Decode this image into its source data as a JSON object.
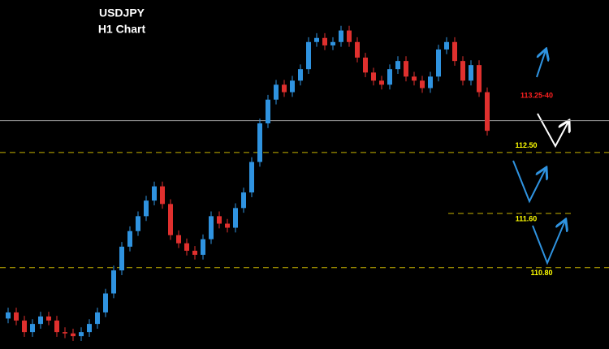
{
  "chart_data": {
    "type": "candlestick",
    "title": "USDJPY",
    "subtitle": "H1 Chart",
    "open": [
      110.05,
      110.14,
      110.02,
      109.85,
      109.97,
      110.08,
      110.02,
      109.85,
      109.83,
      109.79,
      109.85,
      109.97,
      110.14,
      110.42,
      110.76,
      111.11,
      111.34,
      111.56,
      111.79,
      112.0,
      111.74,
      111.28,
      111.16,
      111.05,
      110.99,
      111.22,
      111.56,
      111.45,
      111.39,
      111.68,
      111.91,
      112.36,
      112.93,
      113.28,
      113.5,
      113.39,
      113.56,
      113.73,
      114.13,
      114.19,
      114.08,
      114.13,
      114.3,
      114.13,
      113.9,
      113.68,
      113.56,
      113.5,
      113.73,
      113.85,
      113.62,
      113.56,
      113.45,
      113.62,
      114.02,
      114.13,
      113.85,
      113.56,
      113.79,
      113.39
    ],
    "high": [
      110.21,
      110.21,
      110.09,
      110.04,
      110.15,
      110.15,
      110.09,
      109.92,
      109.9,
      109.92,
      110.04,
      110.21,
      110.49,
      110.83,
      111.18,
      111.41,
      111.63,
      111.86,
      112.07,
      112.07,
      111.81,
      111.35,
      111.23,
      111.12,
      111.29,
      111.63,
      111.63,
      111.52,
      111.75,
      111.98,
      112.43,
      113.0,
      113.35,
      113.57,
      113.57,
      113.63,
      113.8,
      114.2,
      114.26,
      114.26,
      114.2,
      114.37,
      114.37,
      114.2,
      113.97,
      113.75,
      113.63,
      113.8,
      113.92,
      113.92,
      113.69,
      113.63,
      113.69,
      114.09,
      114.2,
      114.2,
      113.92,
      113.86,
      113.86,
      113.46
    ],
    "low": [
      109.98,
      109.95,
      109.78,
      109.78,
      109.9,
      109.95,
      109.78,
      109.76,
      109.72,
      109.72,
      109.78,
      109.9,
      110.07,
      110.35,
      110.69,
      111.04,
      111.27,
      111.49,
      111.72,
      111.67,
      111.21,
      111.09,
      110.98,
      110.92,
      110.92,
      111.15,
      111.38,
      111.32,
      111.32,
      111.61,
      111.84,
      112.29,
      112.86,
      113.21,
      113.32,
      113.32,
      113.49,
      113.66,
      114.06,
      114.01,
      114.01,
      114.06,
      114.06,
      113.83,
      113.61,
      113.49,
      113.43,
      113.43,
      113.66,
      113.55,
      113.49,
      113.38,
      113.38,
      113.55,
      113.95,
      113.78,
      113.49,
      113.49,
      113.32,
      112.75
    ],
    "close": [
      110.14,
      110.02,
      109.85,
      109.97,
      110.08,
      110.02,
      109.85,
      109.83,
      109.79,
      109.85,
      109.97,
      110.14,
      110.42,
      110.76,
      111.11,
      111.34,
      111.56,
      111.79,
      112.0,
      111.74,
      111.28,
      111.16,
      111.05,
      110.99,
      111.22,
      111.56,
      111.45,
      111.39,
      111.68,
      111.91,
      112.36,
      112.93,
      113.28,
      113.5,
      113.39,
      113.56,
      113.73,
      114.13,
      114.19,
      114.08,
      114.13,
      114.3,
      114.13,
      113.9,
      113.68,
      113.56,
      113.5,
      113.73,
      113.85,
      113.62,
      113.56,
      113.45,
      113.62,
      114.02,
      114.13,
      113.85,
      113.56,
      113.79,
      113.39,
      112.82
    ],
    "up_color": "#2f93e0",
    "down_color": "#e0302e",
    "ylim": [
      109.6,
      114.75
    ],
    "levels": [
      {
        "value": 112.5,
        "label": "112.50"
      },
      {
        "value": 111.6,
        "label": "111.60"
      },
      {
        "value": 110.8,
        "label": "110.80"
      }
    ],
    "level_color": "#c8b400",
    "price_line": 112.97,
    "price_line_color": "#9a9a9a",
    "annotation": "113.25-40"
  }
}
